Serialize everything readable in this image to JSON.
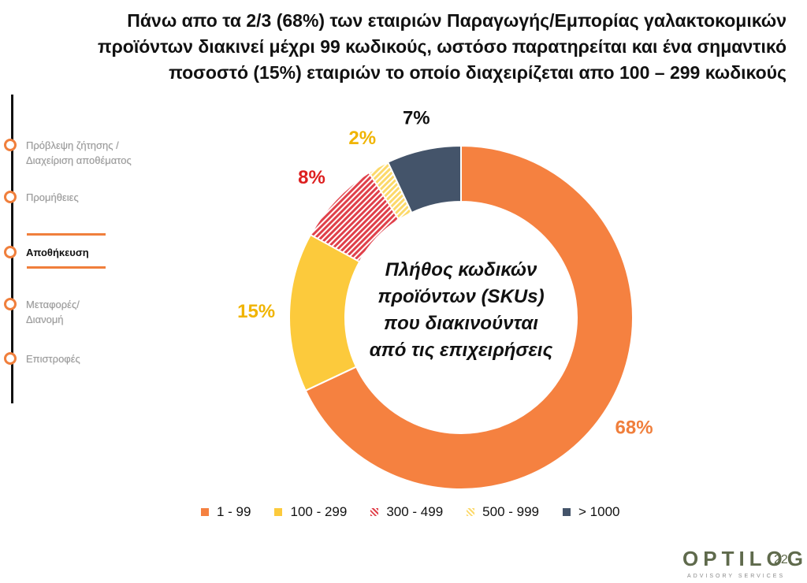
{
  "title": {
    "line1": "Πάνω απο τα 2/3 (68%) των εταιριών Παραγωγής/Εμπορίας γαλακτοκομικών",
    "line2": "προϊόντων διακινεί μέχρι 99 κωδικούς, ωστόσο παρατηρείται και ένα σημαντικό",
    "line3": "ποσοστό (15%) εταιριών το οποίο διαχειρίζεται απο 100 – 299 κωδικούς"
  },
  "timeline": {
    "steps": [
      {
        "line1": "Πρόβλεψη ζήτησης /",
        "line2": "Διαχείριση αποθέματος",
        "active": false
      },
      {
        "line1": "Προμήθειες",
        "line2": "",
        "active": false
      },
      {
        "line1": "Αποθήκευση",
        "line2": "",
        "active": true
      },
      {
        "line1": "Μεταφορές/",
        "line2": "Διανομή",
        "active": false
      },
      {
        "line1": "Επιστροφές",
        "line2": "",
        "active": false
      }
    ]
  },
  "chart_data": {
    "type": "pie",
    "donut": true,
    "center_label": {
      "line1": "Πλήθος κωδικών",
      "line2": "προϊόντων (SKUs)",
      "line3": "που διακινούνται",
      "line4": "από τις επιχειρήσεις"
    },
    "categories": [
      "1 - 99",
      "100 - 299",
      "300 - 499",
      "500 - 999",
      "> 1000"
    ],
    "values": [
      68,
      15,
      8,
      2,
      7
    ],
    "value_labels": [
      "68%",
      "15%",
      "8%",
      "2%",
      "7%"
    ],
    "colors": [
      "#f58140",
      "#fcca3c",
      "#e0404a",
      "#fcd96a",
      "#44546a"
    ],
    "label_colors": [
      "#f07f3c",
      "#f0b400",
      "#dd1f1f",
      "#f0b400",
      "#111111"
    ],
    "patterns": [
      "solid",
      "solid",
      "hatch",
      "hatch",
      "solid"
    ],
    "legend_position": "bottom"
  },
  "logo": {
    "text": "OPTILOG",
    "number": "22",
    "sub": "ADVISORY SERVICES"
  }
}
